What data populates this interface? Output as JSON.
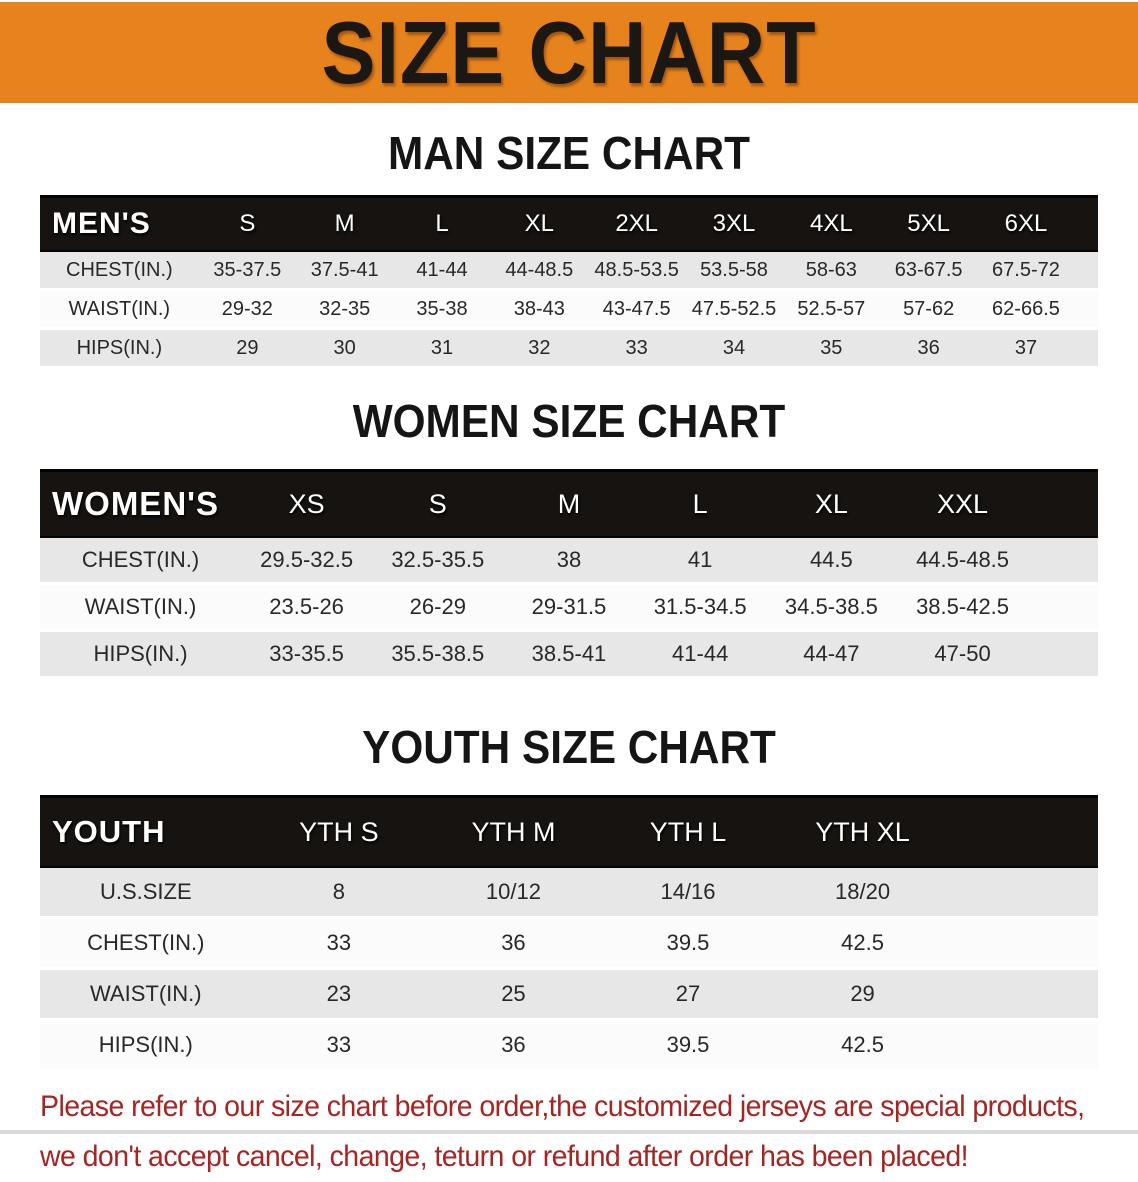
{
  "banner": {
    "title": "SIZE CHART",
    "bg_color": "#E7831D",
    "text_color": "#1B1713"
  },
  "sections": [
    {
      "kind": "men",
      "heading": "MAN SIZE CHART",
      "header_label": "MEN'S",
      "columns": [
        "S",
        "M",
        "L",
        "XL",
        "2XL",
        "3XL",
        "4XL",
        "5XL",
        "6XL"
      ],
      "rows": [
        {
          "label": "CHEST(IN.)",
          "values": [
            "35-37.5",
            "37.5-41",
            "41-44",
            "44-48.5",
            "48.5-53.5",
            "53.5-58",
            "58-63",
            "63-67.5",
            "67.5-72"
          ]
        },
        {
          "label": "WAIST(IN.)",
          "values": [
            "29-32",
            "32-35",
            "35-38",
            "38-43",
            "43-47.5",
            "47.5-52.5",
            "52.5-57",
            "57-62",
            "62-66.5"
          ]
        },
        {
          "label": "HIPS(IN.)",
          "values": [
            "29",
            "30",
            "31",
            "32",
            "33",
            "34",
            "35",
            "36",
            "37"
          ]
        }
      ]
    },
    {
      "kind": "women",
      "heading": "WOMEN SIZE CHART",
      "header_label": "WOMEN'S",
      "columns": [
        "XS",
        "S",
        "M",
        "L",
        "XL",
        "XXL"
      ],
      "rows": [
        {
          "label": "CHEST(IN.)",
          "values": [
            "29.5-32.5",
            "32.5-35.5",
            "38",
            "41",
            "44.5",
            "44.5-48.5"
          ]
        },
        {
          "label": "WAIST(IN.)",
          "values": [
            "23.5-26",
            "26-29",
            "29-31.5",
            "31.5-34.5",
            "34.5-38.5",
            "38.5-42.5"
          ]
        },
        {
          "label": "HIPS(IN.)",
          "values": [
            "33-35.5",
            "35.5-38.5",
            "38.5-41",
            "41-44",
            "44-47",
            "47-50"
          ]
        }
      ]
    },
    {
      "kind": "youth",
      "heading": "YOUTH SIZE CHART",
      "header_label": "YOUTH",
      "columns": [
        "YTH S",
        "YTH M",
        "YTH L",
        "YTH XL"
      ],
      "rows": [
        {
          "label": "U.S.SIZE",
          "values": [
            "8",
            "10/12",
            "14/16",
            "18/20"
          ]
        },
        {
          "label": "CHEST(IN.)",
          "values": [
            "33",
            "36",
            "39.5",
            "42.5"
          ]
        },
        {
          "label": "WAIST(IN.)",
          "values": [
            "23",
            "25",
            "27",
            "29"
          ]
        },
        {
          "label": "HIPS(IN.)",
          "values": [
            "33",
            "36",
            "39.5",
            "42.5"
          ]
        }
      ]
    }
  ],
  "disclaimer": {
    "line1": "Please refer to our size chart before order,the customized jerseys are special products,",
    "line2": "we don't accept cancel, change, teturn or refund after order has been placed!",
    "color": "#A62422"
  },
  "colors": {
    "banner_orange": "#E7831D",
    "table_header_black": "#161310",
    "stripe_gray": "#E7E7E7",
    "row_white": "#FBFBFB",
    "disclaimer_red": "#A62422"
  }
}
